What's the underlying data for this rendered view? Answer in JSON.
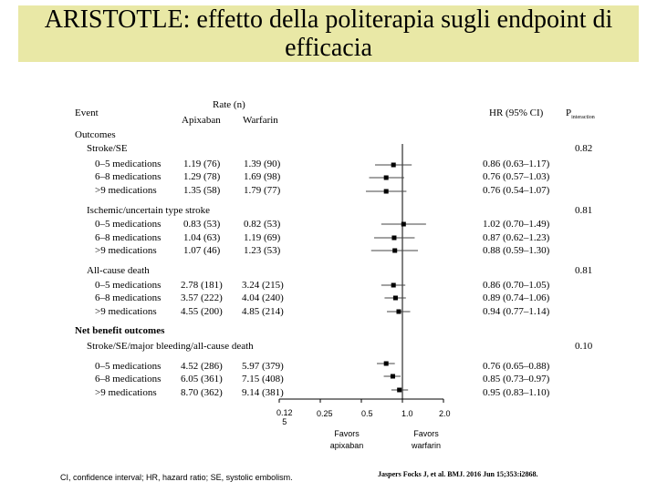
{
  "slide": {
    "title": "ARISTOTLE: effetto della politerapia sugli endpoint di efficacia"
  },
  "headers": {
    "event": "Event",
    "rate": "Rate (n)",
    "apixaban": "Apixaban",
    "warfarin": "Warfarin",
    "hr": "HR (95% CI)",
    "p_main": "P",
    "p_sub": "interaction"
  },
  "section_outcomes": "Outcomes",
  "section_net": "Net benefit outcomes",
  "groups": [
    {
      "name": "Stroke/SE",
      "p_interaction": "0.82",
      "rows": [
        {
          "label": "0–5 medications",
          "apixaban": "1.19 (76)",
          "warfarin": "1.39 (90)",
          "ci_text": "0.86 (0.63–1.17)"
        },
        {
          "label": "6–8 medications",
          "apixaban": "1.29 (78)",
          "warfarin": "1.69 (98)",
          "ci_text": "0.76 (0.57–1.03)"
        },
        {
          "label": ">9 medications",
          "apixaban": "1.35 (58)",
          "warfarin": "1.79 (77)",
          "ci_text": "0.76 (0.54–1.07)"
        }
      ]
    },
    {
      "name": "Ischemic/uncertain type stroke",
      "p_interaction": "0.81",
      "rows": [
        {
          "label": "0–5 medications",
          "apixaban": "0.83 (53)",
          "warfarin": "0.82 (53)",
          "ci_text": "1.02 (0.70–1.49)"
        },
        {
          "label": "6–8 medications",
          "apixaban": "1.04 (63)",
          "warfarin": "1.19 (69)",
          "ci_text": "0.87 (0.62–1.23)"
        },
        {
          "label": ">9 medications",
          "apixaban": "1.07 (46)",
          "warfarin": "1.23 (53)",
          "ci_text": "0.88 (0.59–1.30)"
        }
      ]
    },
    {
      "name": "All-cause death",
      "p_interaction": "0.81",
      "rows": [
        {
          "label": "0–5 medications",
          "apixaban": "2.78 (181)",
          "warfarin": "3.24 (215)",
          "ci_text": "0.86 (0.70–1.05)"
        },
        {
          "label": "6–8 medications",
          "apixaban": "3.57 (222)",
          "warfarin": "4.04 (240)",
          "ci_text": "0.89 (0.74–1.06)"
        },
        {
          "label": ">9 medications",
          "apixaban": "4.55 (200)",
          "warfarin": "4.85 (214)",
          "ci_text": "0.94 (0.77–1.14)"
        }
      ]
    },
    {
      "name": "Stroke/SE/major bleeding/all-cause death",
      "p_interaction": "0.10",
      "rows": [
        {
          "label": "0–5 medications",
          "apixaban": "4.52 (286)",
          "warfarin": "5.97 (379)",
          "ci_text": "0.76 (0.65–0.88)"
        },
        {
          "label": "6–8 medications",
          "apixaban": "6.05 (361)",
          "warfarin": "7.15 (408)",
          "ci_text": "0.85 (0.73–0.97)"
        },
        {
          "label": ">9 medications",
          "apixaban": "8.70 (362)",
          "warfarin": "9.14 (381)",
          "ci_text": "0.95 (0.83–1.10)"
        }
      ]
    }
  ],
  "axis": {
    "tick_labels": [
      "0.12\n5",
      "0.25",
      "0.5",
      "1.0",
      "2.0"
    ],
    "favors_left": "Favors\napixaban",
    "favors_right": "Favors\nwarfarin"
  },
  "footnote": "CI, confidence interval; HR, hazard ratio; SE, systolic embolism.",
  "citation": "Jaspers Focks J, et al. BMJ. 2016 Jun 15;353:i2868.",
  "chart_data": {
    "type": "forest",
    "scale": "log",
    "xlim": [
      0.125,
      2.0
    ],
    "ticks": [
      0.125,
      0.25,
      0.5,
      1.0,
      2.0
    ],
    "reference_line": 1.0,
    "series": [
      {
        "group": "Stroke/SE",
        "label": "0–5 medications",
        "hr": 0.86,
        "lo": 0.63,
        "hi": 1.17
      },
      {
        "group": "Stroke/SE",
        "label": "6–8 medications",
        "hr": 0.76,
        "lo": 0.57,
        "hi": 1.03
      },
      {
        "group": "Stroke/SE",
        "label": ">9 medications",
        "hr": 0.76,
        "lo": 0.54,
        "hi": 1.07
      },
      {
        "group": "Ischemic/uncertain type stroke",
        "label": "0–5 medications",
        "hr": 1.02,
        "lo": 0.7,
        "hi": 1.49
      },
      {
        "group": "Ischemic/uncertain type stroke",
        "label": "6–8 medications",
        "hr": 0.87,
        "lo": 0.62,
        "hi": 1.23
      },
      {
        "group": "Ischemic/uncertain type stroke",
        "label": ">9 medications",
        "hr": 0.88,
        "lo": 0.59,
        "hi": 1.3
      },
      {
        "group": "All-cause death",
        "label": "0–5 medications",
        "hr": 0.86,
        "lo": 0.7,
        "hi": 1.05
      },
      {
        "group": "All-cause death",
        "label": "6–8 medications",
        "hr": 0.89,
        "lo": 0.74,
        "hi": 1.06
      },
      {
        "group": "All-cause death",
        "label": ">9 medications",
        "hr": 0.94,
        "lo": 0.77,
        "hi": 1.14
      },
      {
        "group": "Stroke/SE/major bleeding/all-cause death",
        "label": "0–5 medications",
        "hr": 0.76,
        "lo": 0.65,
        "hi": 0.88
      },
      {
        "group": "Stroke/SE/major bleeding/all-cause death",
        "label": "6–8 medications",
        "hr": 0.85,
        "lo": 0.73,
        "hi": 0.97
      },
      {
        "group": "Stroke/SE/major bleeding/all-cause death",
        "label": ">9 medications",
        "hr": 0.95,
        "lo": 0.83,
        "hi": 1.1
      }
    ]
  }
}
